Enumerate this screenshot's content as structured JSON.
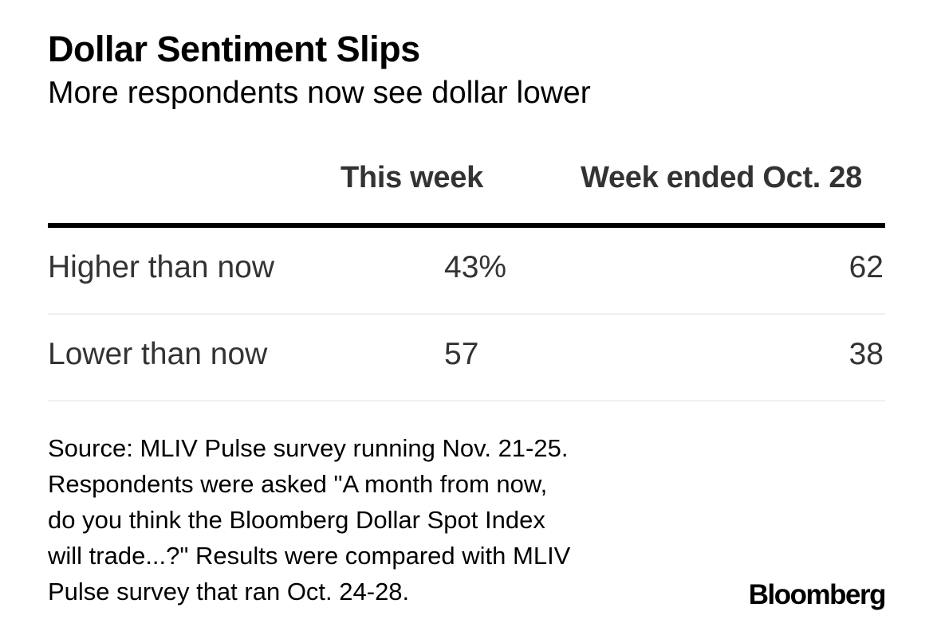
{
  "title": "Dollar Sentiment Slips",
  "subtitle": "More respondents now see dollar lower",
  "chart_data": {
    "type": "table",
    "title": "Dollar Sentiment Slips",
    "subtitle": "More respondents now see dollar lower",
    "columns": [
      "This week",
      "Week ended Oct. 28"
    ],
    "rows": [
      {
        "label": "Higher than now",
        "display": [
          "43%",
          "62"
        ],
        "values": [
          43,
          62
        ]
      },
      {
        "label": "Lower than now",
        "display": [
          "57",
          "38"
        ],
        "values": [
          57,
          38
        ]
      }
    ],
    "unit": "%"
  },
  "source_lines": [
    "Source: MLIV Pulse survey running Nov. 21-25.",
    "Respondents were asked \"A month from now,",
    "do you think the Bloomberg Dollar Spot Index",
    "will trade...?\" Results were compared with MLIV",
    "Pulse survey that ran Oct. 24-28."
  ],
  "logo_text": "Bloomberg",
  "colors": {
    "text": "#000000",
    "table_text": "#333333",
    "header_rule": "#000000",
    "row_rule": "#f0f0f0"
  }
}
